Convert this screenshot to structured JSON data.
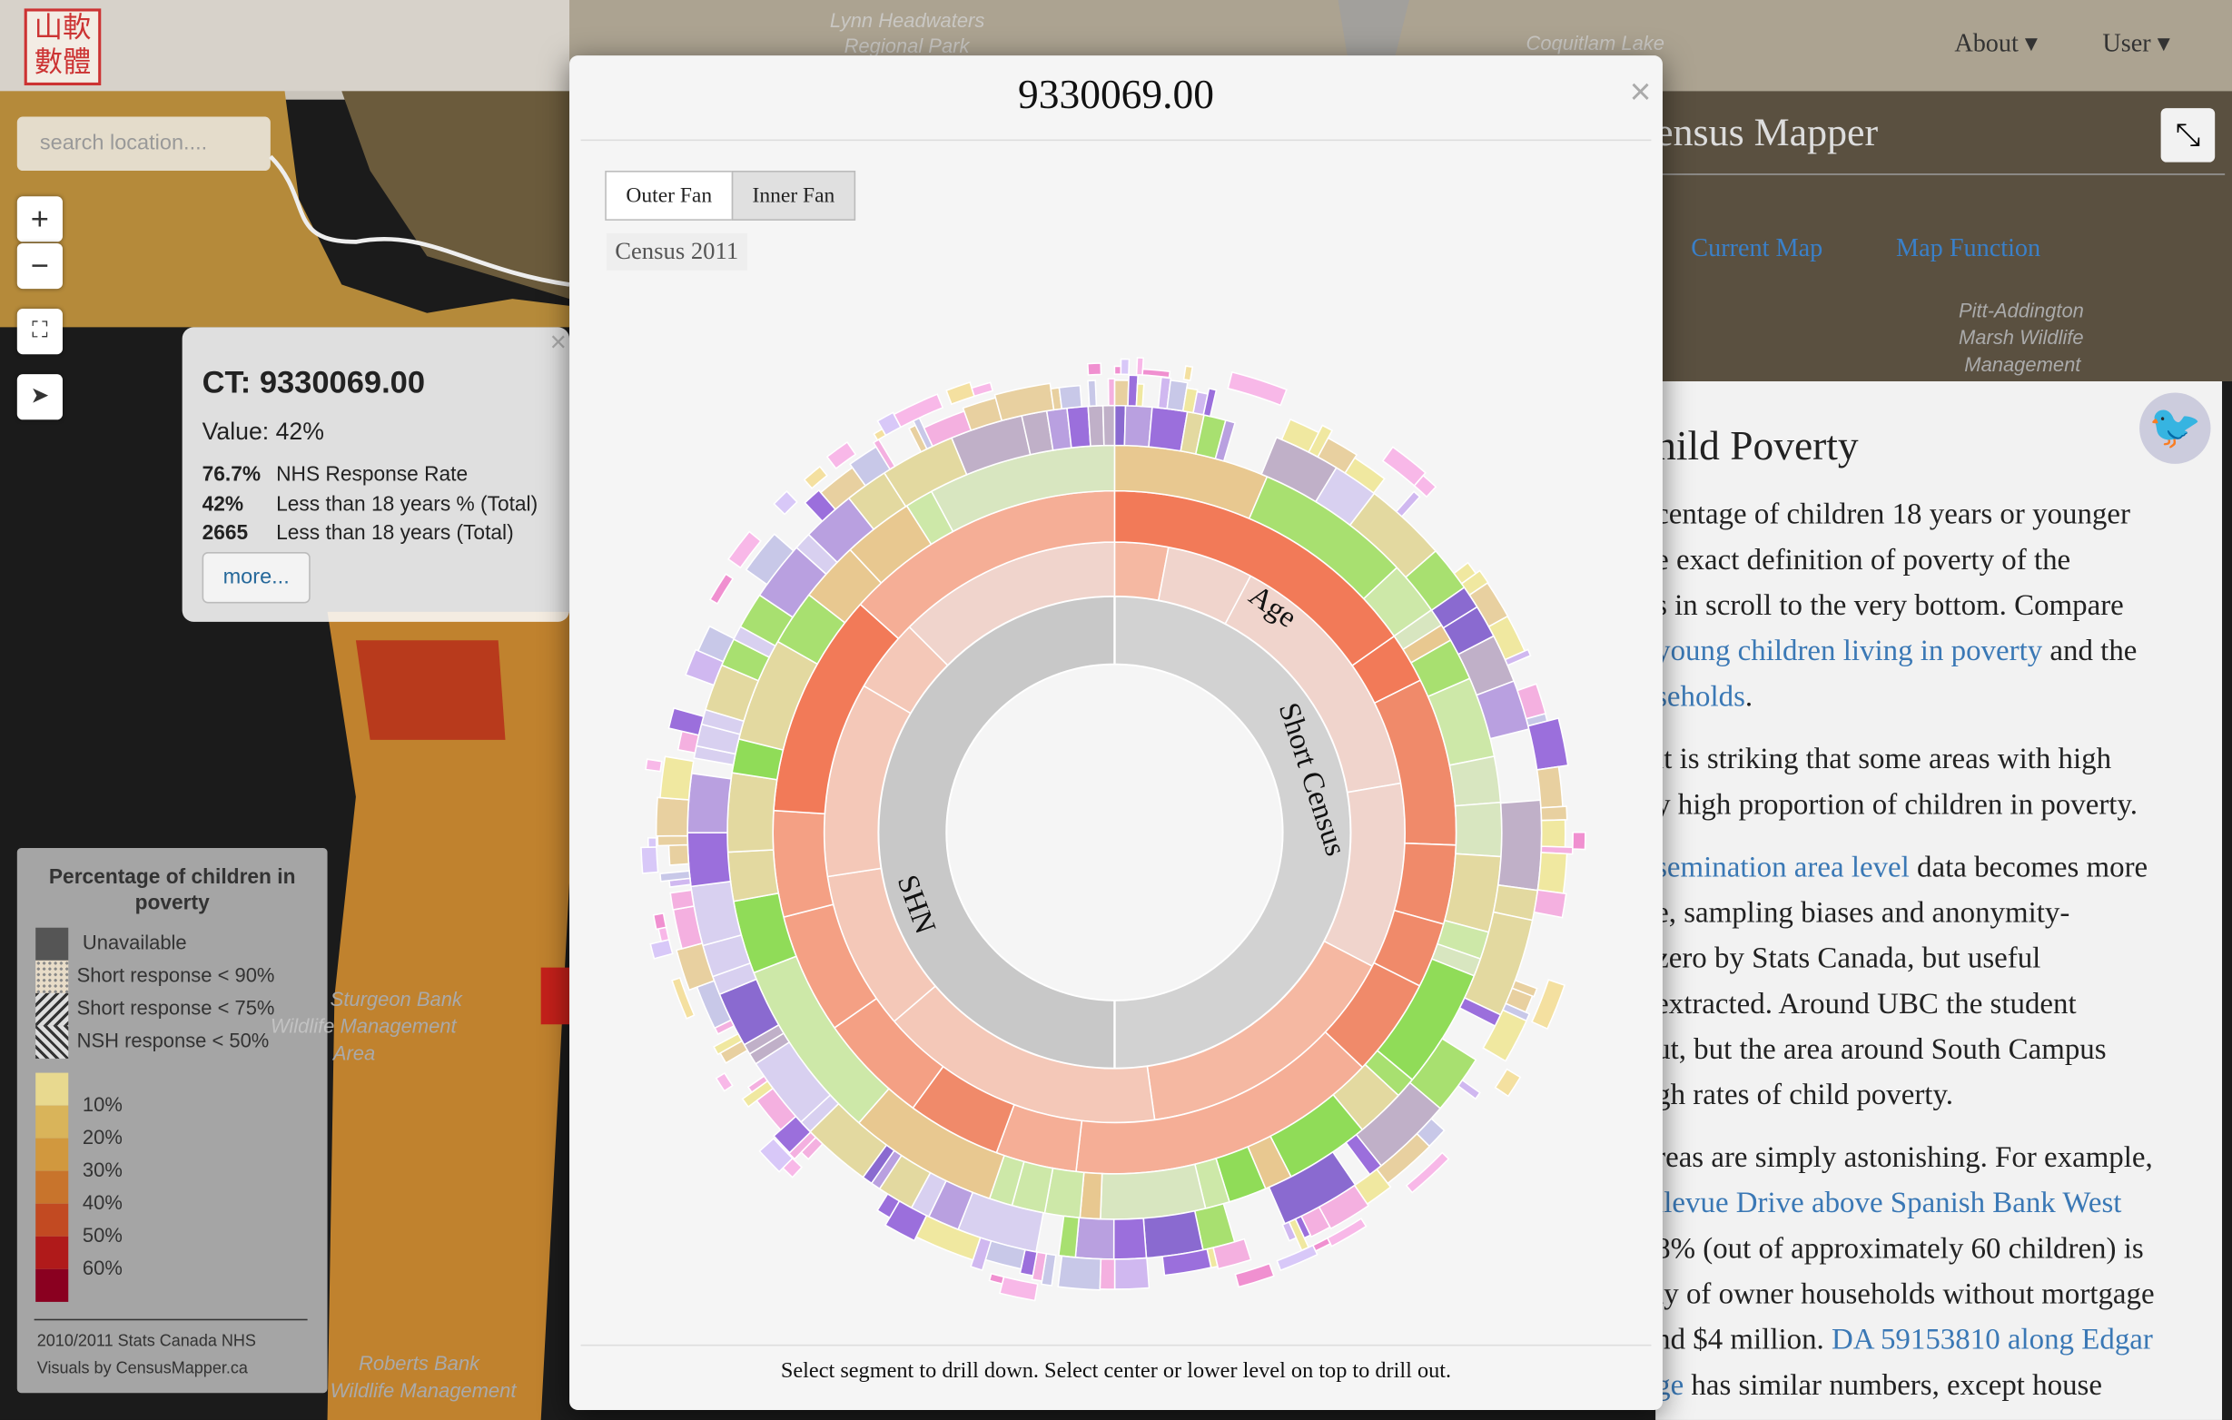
{
  "nav": {
    "logo": [
      "山軟",
      "數體"
    ],
    "menu": [
      "About",
      "User"
    ]
  },
  "map": {
    "search_placeholder": "search location....",
    "zoom_in": "+",
    "zoom_out": "−",
    "labels": [
      "Lynn Headwaters",
      "Regional Park",
      "Coquitlam Lake",
      "Sturgeon Bank",
      "Wildlife Management",
      "Area",
      "Roberts Bank",
      "Wildlife Management",
      "Pitt-Addington",
      "Marsh Wildlife",
      "Management"
    ]
  },
  "popup": {
    "close": "×",
    "title": "CT: 9330069.00",
    "value": "Value: 42%",
    "rows": [
      [
        "76.7%",
        "NHS Response Rate"
      ],
      [
        "42%",
        "Less than 18 years % (Total)"
      ],
      [
        "2665",
        "Less than 18 years (Total)"
      ]
    ],
    "button": "more..."
  },
  "legend": {
    "title": "Percentage of children in poverty",
    "patterns": [
      "Unavailable",
      "Short response < 90%",
      "Short response < 75%",
      "NSH response < 50%"
    ],
    "scale": [
      "10%",
      "20%",
      "30%",
      "40%",
      "50%",
      "60%"
    ],
    "footer": [
      "2010/2011 Stats Canada NHS",
      "Visuals by CensusMapper.ca"
    ]
  },
  "panel": {
    "brand": "ensus Mapper",
    "tabs": [
      "Current Map",
      "Map Function"
    ],
    "heading": "hild Poverty",
    "lines": [
      [
        {
          "text": "centage of children 18 years or younger"
        }
      ],
      [
        {
          "text": "e exact definition of poverty of the"
        }
      ],
      [
        {
          "text": "s in scroll to the very bottom. Compare"
        }
      ],
      [
        {
          "text": "young children living in poverty",
          "link": true
        },
        {
          "text": " and the"
        }
      ],
      [
        {
          "text": "seholds",
          "link": true
        },
        {
          "text": "."
        }
      ],
      [],
      [
        {
          "text": "it is striking that some areas with high"
        }
      ],
      [
        {
          "text": "y high proportion of children in poverty."
        }
      ],
      [],
      [
        {
          "text": "semination area level",
          "link": true
        },
        {
          "text": " data becomes more"
        }
      ],
      [
        {
          "text": "e, sampling biases and anonymity-"
        }
      ],
      [
        {
          "text": "zero by Stats Canada, but useful"
        }
      ],
      [
        {
          "text": "extracted. Around UBC the student"
        }
      ],
      [
        {
          "text": "ut, but the area around South Campus"
        }
      ],
      [
        {
          "text": "gh rates of child poverty."
        }
      ],
      [],
      [
        {
          "text": "reas are simply astonishing. For example,"
        }
      ],
      [
        {
          "text": "llevue Drive above Spanish Bank West",
          "link": true
        }
      ],
      [
        {
          "text": "8% (out of approximately 60 children) is"
        }
      ],
      [
        {
          "text": "ly of owner households without mortgage"
        }
      ],
      [
        {
          "text": "nd $4 million. "
        },
        {
          "text": "DA 59153810 along Edgar",
          "link": true
        }
      ],
      [
        {
          "text": "ge",
          "link": true
        },
        {
          "text": " has similar numbers, except house"
        }
      ]
    ]
  },
  "modal": {
    "title": "9330069.00",
    "close": "×",
    "buttons": [
      "Outer Fan",
      "Inner Fan"
    ],
    "dataset": "Census 2011",
    "ring_labels": [
      "Age",
      "Short Census",
      "SHN"
    ],
    "footer": "Select segment to drill down. Select center or lower level on top to drill out."
  }
}
